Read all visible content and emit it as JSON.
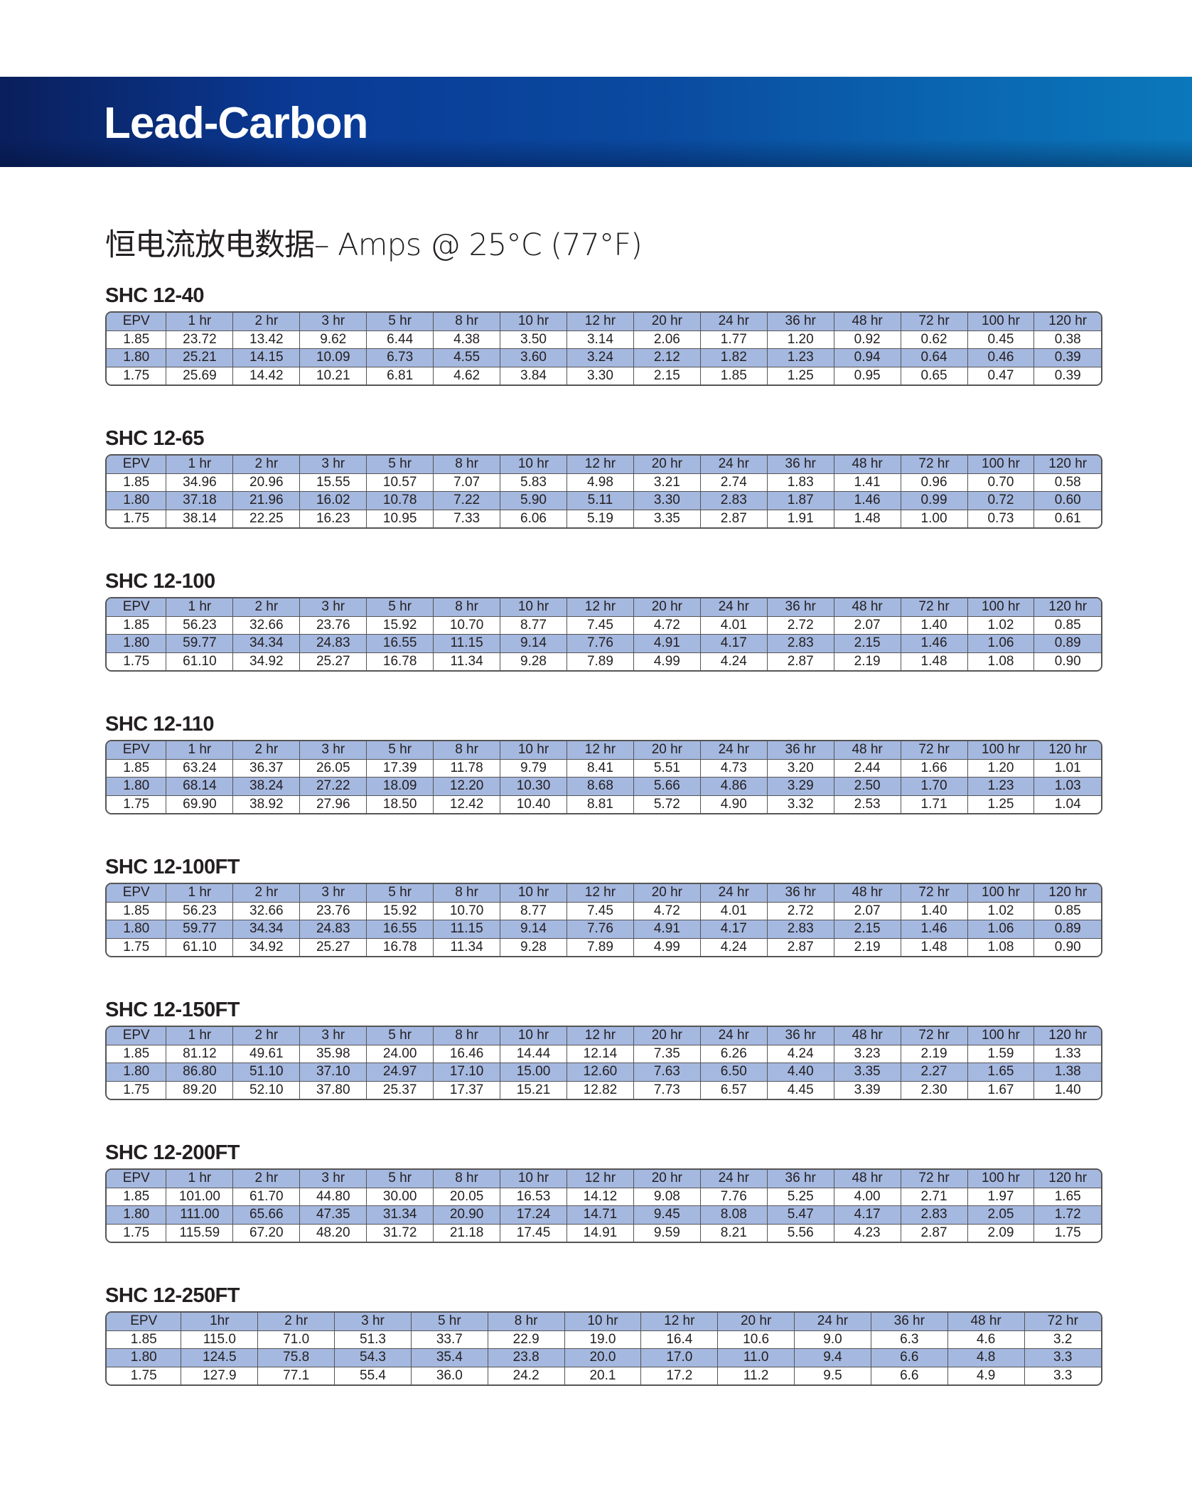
{
  "header": {
    "title": "Lead-Carbon"
  },
  "subtitle": "恒电流放电数据– Amps @ 25°C (77°F)",
  "colors": {
    "banner": "#0a3a95",
    "row_highlight": "#a5b8e0"
  },
  "tables": [
    {
      "model": "SHC 12-40",
      "columns": [
        "EPV",
        "1 hr",
        "2 hr",
        "3 hr",
        "5 hr",
        "8 hr",
        "10 hr",
        "12 hr",
        "20 hr",
        "24 hr",
        "36 hr",
        "48 hr",
        "72 hr",
        "100 hr",
        "120 hr"
      ],
      "rows": [
        [
          "1.85",
          "23.72",
          "13.42",
          "9.62",
          "6.44",
          "4.38",
          "3.50",
          "3.14",
          "2.06",
          "1.77",
          "1.20",
          "0.92",
          "0.62",
          "0.45",
          "0.38"
        ],
        [
          "1.80",
          "25.21",
          "14.15",
          "10.09",
          "6.73",
          "4.55",
          "3.60",
          "3.24",
          "2.12",
          "1.82",
          "1.23",
          "0.94",
          "0.64",
          "0.46",
          "0.39"
        ],
        [
          "1.75",
          "25.69",
          "14.42",
          "10.21",
          "6.81",
          "4.62",
          "3.84",
          "3.30",
          "2.15",
          "1.85",
          "1.25",
          "0.95",
          "0.65",
          "0.47",
          "0.39"
        ]
      ]
    },
    {
      "model": "SHC 12-65",
      "columns": [
        "EPV",
        "1 hr",
        "2 hr",
        "3 hr",
        "5 hr",
        "8 hr",
        "10 hr",
        "12 hr",
        "20 hr",
        "24 hr",
        "36 hr",
        "48 hr",
        "72 hr",
        "100 hr",
        "120 hr"
      ],
      "rows": [
        [
          "1.85",
          "34.96",
          "20.96",
          "15.55",
          "10.57",
          "7.07",
          "5.83",
          "4.98",
          "3.21",
          "2.74",
          "1.83",
          "1.41",
          "0.96",
          "0.70",
          "0.58"
        ],
        [
          "1.80",
          "37.18",
          "21.96",
          "16.02",
          "10.78",
          "7.22",
          "5.90",
          "5.11",
          "3.30",
          "2.83",
          "1.87",
          "1.46",
          "0.99",
          "0.72",
          "0.60"
        ],
        [
          "1.75",
          "38.14",
          "22.25",
          "16.23",
          "10.95",
          "7.33",
          "6.06",
          "5.19",
          "3.35",
          "2.87",
          "1.91",
          "1.48",
          "1.00",
          "0.73",
          "0.61"
        ]
      ]
    },
    {
      "model": "SHC 12-100",
      "columns": [
        "EPV",
        "1 hr",
        "2 hr",
        "3 hr",
        "5 hr",
        "8 hr",
        "10 hr",
        "12 hr",
        "20 hr",
        "24 hr",
        "36 hr",
        "48 hr",
        "72 hr",
        "100 hr",
        "120 hr"
      ],
      "rows": [
        [
          "1.85",
          "56.23",
          "32.66",
          "23.76",
          "15.92",
          "10.70",
          "8.77",
          "7.45",
          "4.72",
          "4.01",
          "2.72",
          "2.07",
          "1.40",
          "1.02",
          "0.85"
        ],
        [
          "1.80",
          "59.77",
          "34.34",
          "24.83",
          "16.55",
          "11.15",
          "9.14",
          "7.76",
          "4.91",
          "4.17",
          "2.83",
          "2.15",
          "1.46",
          "1.06",
          "0.89"
        ],
        [
          "1.75",
          "61.10",
          "34.92",
          "25.27",
          "16.78",
          "11.34",
          "9.28",
          "7.89",
          "4.99",
          "4.24",
          "2.87",
          "2.19",
          "1.48",
          "1.08",
          "0.90"
        ]
      ]
    },
    {
      "model": "SHC 12-110",
      "columns": [
        "EPV",
        "1 hr",
        "2 hr",
        "3 hr",
        "5 hr",
        "8 hr",
        "10 hr",
        "12 hr",
        "20 hr",
        "24 hr",
        "36 hr",
        "48 hr",
        "72 hr",
        "100 hr",
        "120 hr"
      ],
      "rows": [
        [
          "1.85",
          "63.24",
          "36.37",
          "26.05",
          "17.39",
          "11.78",
          "9.79",
          "8.41",
          "5.51",
          "4.73",
          "3.20",
          "2.44",
          "1.66",
          "1.20",
          "1.01"
        ],
        [
          "1.80",
          "68.14",
          "38.24",
          "27.22",
          "18.09",
          "12.20",
          "10.30",
          "8.68",
          "5.66",
          "4.86",
          "3.29",
          "2.50",
          "1.70",
          "1.23",
          "1.03"
        ],
        [
          "1.75",
          "69.90",
          "38.92",
          "27.96",
          "18.50",
          "12.42",
          "10.40",
          "8.81",
          "5.72",
          "4.90",
          "3.32",
          "2.53",
          "1.71",
          "1.25",
          "1.04"
        ]
      ]
    },
    {
      "model": "SHC 12-100FT",
      "columns": [
        "EPV",
        "1 hr",
        "2 hr",
        "3 hr",
        "5 hr",
        "8 hr",
        "10 hr",
        "12 hr",
        "20 hr",
        "24 hr",
        "36 hr",
        "48 hr",
        "72 hr",
        "100 hr",
        "120 hr"
      ],
      "rows": [
        [
          "1.85",
          "56.23",
          "32.66",
          "23.76",
          "15.92",
          "10.70",
          "8.77",
          "7.45",
          "4.72",
          "4.01",
          "2.72",
          "2.07",
          "1.40",
          "1.02",
          "0.85"
        ],
        [
          "1.80",
          "59.77",
          "34.34",
          "24.83",
          "16.55",
          "11.15",
          "9.14",
          "7.76",
          "4.91",
          "4.17",
          "2.83",
          "2.15",
          "1.46",
          "1.06",
          "0.89"
        ],
        [
          "1.75",
          "61.10",
          "34.92",
          "25.27",
          "16.78",
          "11.34",
          "9.28",
          "7.89",
          "4.99",
          "4.24",
          "2.87",
          "2.19",
          "1.48",
          "1.08",
          "0.90"
        ]
      ]
    },
    {
      "model": "SHC 12-150FT",
      "columns": [
        "EPV",
        "1 hr",
        "2 hr",
        "3 hr",
        "5 hr",
        "8 hr",
        "10 hr",
        "12 hr",
        "20 hr",
        "24 hr",
        "36 hr",
        "48 hr",
        "72 hr",
        "100 hr",
        "120 hr"
      ],
      "rows": [
        [
          "1.85",
          "81.12",
          "49.61",
          "35.98",
          "24.00",
          "16.46",
          "14.44",
          "12.14",
          "7.35",
          "6.26",
          "4.24",
          "3.23",
          "2.19",
          "1.59",
          "1.33"
        ],
        [
          "1.80",
          "86.80",
          "51.10",
          "37.10",
          "24.97",
          "17.10",
          "15.00",
          "12.60",
          "7.63",
          "6.50",
          "4.40",
          "3.35",
          "2.27",
          "1.65",
          "1.38"
        ],
        [
          "1.75",
          "89.20",
          "52.10",
          "37.80",
          "25.37",
          "17.37",
          "15.21",
          "12.82",
          "7.73",
          "6.57",
          "4.45",
          "3.39",
          "2.30",
          "1.67",
          "1.40"
        ]
      ]
    },
    {
      "model": "SHC 12-200FT",
      "columns": [
        "EPV",
        "1 hr",
        "2 hr",
        "3 hr",
        "5 hr",
        "8 hr",
        "10 hr",
        "12 hr",
        "20 hr",
        "24 hr",
        "36 hr",
        "48 hr",
        "72 hr",
        "100 hr",
        "120 hr"
      ],
      "rows": [
        [
          "1.85",
          "101.00",
          "61.70",
          "44.80",
          "30.00",
          "20.05",
          "16.53",
          "14.12",
          "9.08",
          "7.76",
          "5.25",
          "4.00",
          "2.71",
          "1.97",
          "1.65"
        ],
        [
          "1.80",
          "111.00",
          "65.66",
          "47.35",
          "31.34",
          "20.90",
          "17.24",
          "14.71",
          "9.45",
          "8.08",
          "5.47",
          "4.17",
          "2.83",
          "2.05",
          "1.72"
        ],
        [
          "1.75",
          "115.59",
          "67.20",
          "48.20",
          "31.72",
          "21.18",
          "17.45",
          "14.91",
          "9.59",
          "8.21",
          "5.56",
          "4.23",
          "2.87",
          "2.09",
          "1.75"
        ]
      ]
    },
    {
      "model": "SHC 12-250FT",
      "columns": [
        "EPV",
        "1hr",
        "2 hr",
        "3 hr",
        "5 hr",
        "8 hr",
        "10 hr",
        "12 hr",
        "20 hr",
        "24 hr",
        "36 hr",
        "48 hr",
        "72 hr"
      ],
      "rows": [
        [
          "1.85",
          "115.0",
          "71.0",
          "51.3",
          "33.7",
          "22.9",
          "19.0",
          "16.4",
          "10.6",
          "9.0",
          "6.3",
          "4.6",
          "3.2"
        ],
        [
          "1.80",
          "124.5",
          "75.8",
          "54.3",
          "35.4",
          "23.8",
          "20.0",
          "17.0",
          "11.0",
          "9.4",
          "6.6",
          "4.8",
          "3.3"
        ],
        [
          "1.75",
          "127.9",
          "77.1",
          "55.4",
          "36.0",
          "24.2",
          "20.1",
          "17.2",
          "11.2",
          "9.5",
          "6.6",
          "4.9",
          "3.3"
        ]
      ]
    }
  ]
}
